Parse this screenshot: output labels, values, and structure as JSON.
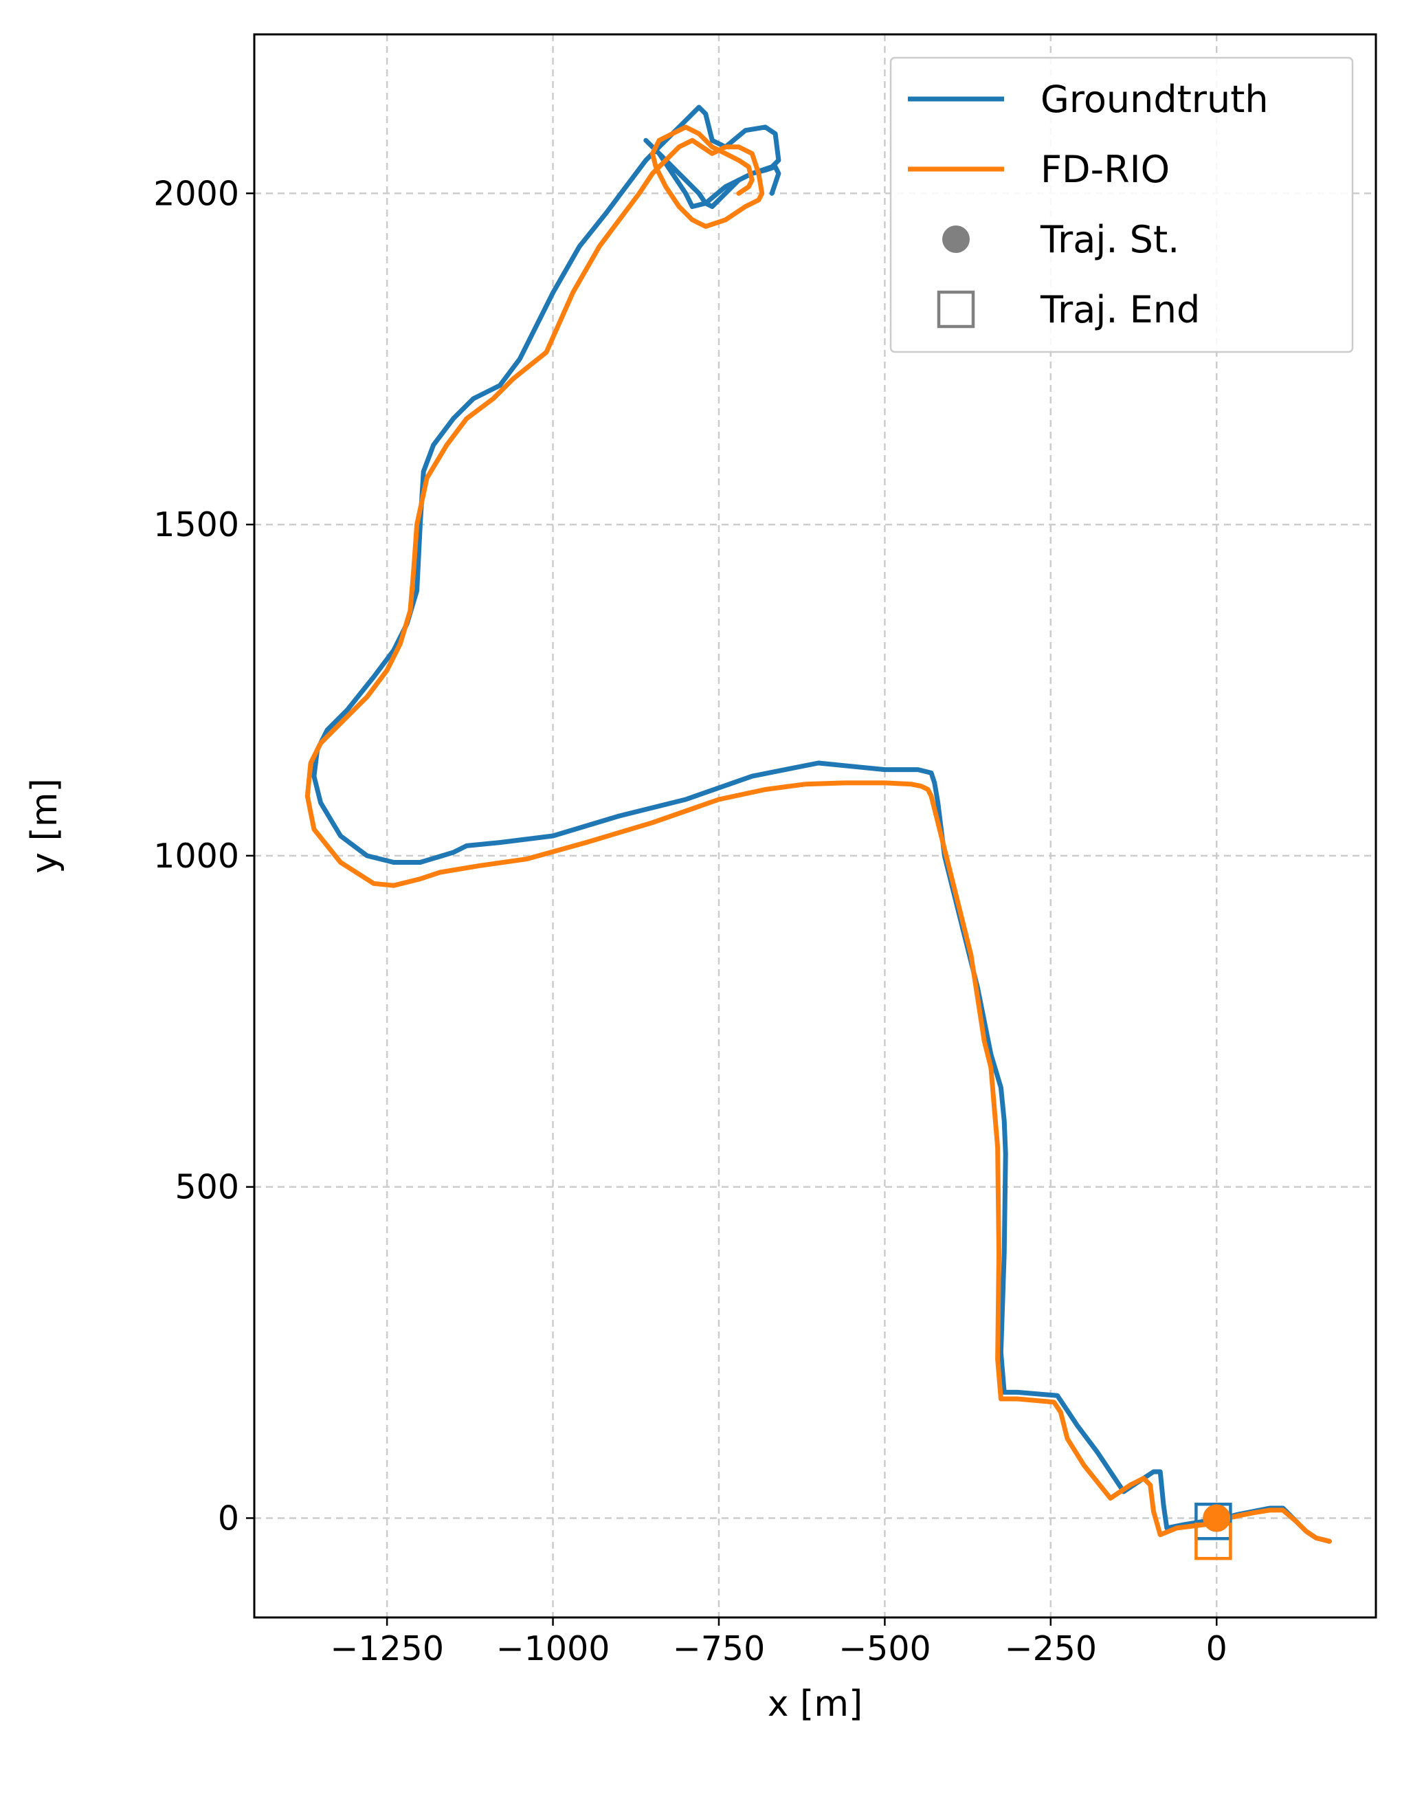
{
  "chart_data": {
    "type": "line",
    "xlabel": "x [m]",
    "ylabel": "y [m]",
    "xlim": [
      -1450,
      240
    ],
    "ylim": [
      -150,
      2240
    ],
    "grid": true,
    "legend_position": "top-right",
    "xticks": [
      {
        "value": -1250,
        "label": "−1250"
      },
      {
        "value": -1000,
        "label": "−1000"
      },
      {
        "value": -750,
        "label": "−750"
      },
      {
        "value": -500,
        "label": "−500"
      },
      {
        "value": -250,
        "label": "−250"
      },
      {
        "value": 0,
        "label": "0"
      }
    ],
    "yticks": [
      {
        "value": 0,
        "label": "0"
      },
      {
        "value": 500,
        "label": "500"
      },
      {
        "value": 1000,
        "label": "1000"
      },
      {
        "value": 1500,
        "label": "1500"
      },
      {
        "value": 2000,
        "label": "2000"
      }
    ],
    "series": [
      {
        "name": "Groundtruth",
        "color": "#1f77b4",
        "x": [
          170,
          150,
          135,
          120,
          100,
          80,
          55,
          30,
          10,
          -5,
          -20,
          -50,
          -75,
          -80,
          -85,
          -95,
          -110,
          -140,
          -180,
          -210,
          -230,
          -240,
          -300,
          -320,
          -325,
          -320,
          -318,
          -320,
          -325,
          -340,
          -360,
          -385,
          -410,
          -420,
          -425,
          -430,
          -450,
          -500,
          -550,
          -600,
          -650,
          -700,
          -800,
          -900,
          -1000,
          -1080,
          -1130,
          -1150,
          -1200,
          -1240,
          -1280,
          -1320,
          -1350,
          -1360,
          -1355,
          -1340,
          -1310,
          -1270,
          -1240,
          -1220,
          -1205,
          -1200,
          -1195,
          -1180,
          -1150,
          -1120,
          -1080,
          -1050,
          -1000,
          -960,
          -920,
          -890,
          -860,
          -840,
          -820,
          -800,
          -780,
          -770,
          -760,
          -740,
          -710,
          -680,
          -665,
          -660,
          -670,
          -700,
          -740,
          -770,
          -790,
          -800,
          -820,
          -840,
          -860,
          -840,
          -820,
          -800,
          -780,
          -770,
          -760,
          -740,
          -720,
          -700,
          -680,
          -665,
          -660,
          -670
        ],
        "y": [
          -35,
          -30,
          -20,
          -5,
          15,
          15,
          10,
          5,
          0,
          -5,
          -5,
          -10,
          -15,
          20,
          70,
          70,
          60,
          40,
          100,
          140,
          170,
          185,
          190,
          190,
          250,
          400,
          550,
          600,
          650,
          700,
          800,
          900,
          1000,
          1080,
          1110,
          1125,
          1130,
          1130,
          1135,
          1140,
          1130,
          1120,
          1085,
          1060,
          1030,
          1020,
          1015,
          1005,
          990,
          990,
          1000,
          1030,
          1080,
          1120,
          1160,
          1190,
          1220,
          1270,
          1310,
          1350,
          1400,
          1500,
          1580,
          1620,
          1660,
          1690,
          1710,
          1750,
          1850,
          1920,
          1970,
          2010,
          2050,
          2070,
          2090,
          2110,
          2130,
          2120,
          2080,
          2070,
          2095,
          2100,
          2090,
          2050,
          2040,
          2030,
          2010,
          1985,
          1980,
          2000,
          2030,
          2060,
          2080,
          2060,
          2040,
          2020,
          2000,
          1985,
          1980,
          2000,
          2020,
          2030,
          2035,
          2040,
          2030,
          2000
        ]
      },
      {
        "name": "FD-RIO",
        "color": "#ff7f0e",
        "x": [
          170,
          150,
          135,
          120,
          100,
          80,
          55,
          30,
          10,
          -5,
          -20,
          -60,
          -85,
          -95,
          -100,
          -110,
          -130,
          -160,
          -200,
          -225,
          -235,
          -245,
          -300,
          -325,
          -330,
          -328,
          -330,
          -335,
          -340,
          -350,
          -370,
          -395,
          -420,
          -430,
          -435,
          -445,
          -460,
          -500,
          -560,
          -620,
          -680,
          -750,
          -850,
          -950,
          -1040,
          -1110,
          -1170,
          -1200,
          -1240,
          -1270,
          -1320,
          -1360,
          -1370,
          -1365,
          -1350,
          -1320,
          -1280,
          -1250,
          -1230,
          -1215,
          -1210,
          -1205,
          -1190,
          -1160,
          -1130,
          -1090,
          -1060,
          -1010,
          -970,
          -930,
          -900,
          -870,
          -850,
          -830,
          -810,
          -790,
          -775,
          -760,
          -740,
          -720,
          -700,
          -690,
          -685,
          -690,
          -710,
          -740,
          -770,
          -790,
          -810,
          -830,
          -845,
          -850,
          -840,
          -820,
          -800,
          -780,
          -760,
          -740,
          -720,
          -705,
          -700,
          -705,
          -720
        ],
        "y": [
          -35,
          -30,
          -20,
          -5,
          12,
          12,
          8,
          3,
          -2,
          -8,
          -10,
          -15,
          -25,
          10,
          50,
          60,
          50,
          30,
          80,
          120,
          160,
          175,
          180,
          180,
          240,
          400,
          560,
          620,
          680,
          720,
          850,
          950,
          1050,
          1090,
          1100,
          1105,
          1108,
          1110,
          1110,
          1108,
          1100,
          1085,
          1050,
          1020,
          995,
          985,
          975,
          965,
          955,
          958,
          990,
          1040,
          1090,
          1140,
          1170,
          1200,
          1240,
          1280,
          1320,
          1370,
          1430,
          1500,
          1570,
          1620,
          1660,
          1690,
          1720,
          1760,
          1850,
          1920,
          1960,
          2000,
          2030,
          2050,
          2070,
          2080,
          2070,
          2060,
          2070,
          2070,
          2060,
          2030,
          2000,
          1990,
          1980,
          1960,
          1950,
          1960,
          1980,
          2010,
          2040,
          2060,
          2080,
          2090,
          2100,
          2090,
          2070,
          2060,
          2050,
          2040,
          2020,
          2010,
          2000
        ]
      }
    ],
    "markers": [
      {
        "series": "Groundtruth",
        "kind": "start",
        "shape": "circle",
        "x": 0,
        "y": 0
      },
      {
        "series": "Groundtruth",
        "kind": "end",
        "shape": "square",
        "x": -5,
        "y": -5
      },
      {
        "series": "FD-RIO",
        "kind": "start",
        "shape": "circle",
        "x": 0,
        "y": 0
      },
      {
        "series": "FD-RIO",
        "kind": "end",
        "shape": "square",
        "x": -5,
        "y": -35
      }
    ],
    "legend": [
      {
        "label": "Groundtruth",
        "kind": "line",
        "color": "#1f77b4"
      },
      {
        "label": "FD-RIO",
        "kind": "line",
        "color": "#ff7f0e"
      },
      {
        "label": "Traj. St.",
        "kind": "circle",
        "color": "#808080"
      },
      {
        "label": "Traj. End",
        "kind": "square",
        "color": "#808080"
      }
    ]
  }
}
